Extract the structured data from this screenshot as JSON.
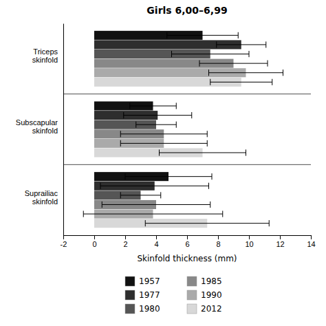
{
  "chart_data": {
    "type": "bar",
    "orientation": "horizontal",
    "title": "Girls 6,00–6,99",
    "xlabel": "Skinfold thickness (mm)",
    "categories": [
      "Triceps\nskinfold",
      "Subscapular\nskinfold",
      "Suprailiac\nskinfold"
    ],
    "series": [
      {
        "name": "1957",
        "color": "#111111",
        "values": [
          7.0,
          3.8,
          4.8
        ],
        "errors": [
          2.3,
          1.5,
          2.8
        ]
      },
      {
        "name": "1977",
        "color": "#2e2e2e",
        "values": [
          9.5,
          4.1,
          3.9
        ],
        "errors": [
          1.6,
          2.2,
          3.5
        ]
      },
      {
        "name": "1980",
        "color": "#555555",
        "values": [
          7.5,
          4.0,
          3.0
        ],
        "errors": [
          2.5,
          1.3,
          1.3
        ]
      },
      {
        "name": "1985",
        "color": "#888888",
        "values": [
          9.0,
          4.5,
          4.0
        ],
        "errors": [
          2.2,
          2.8,
          3.5
        ]
      },
      {
        "name": "1990",
        "color": "#aaaaaa",
        "values": [
          9.8,
          4.5,
          3.8
        ],
        "errors": [
          2.4,
          2.8,
          4.5
        ]
      },
      {
        "name": "2012",
        "color": "#d8d8d8",
        "values": [
          9.5,
          7.0,
          7.3
        ],
        "errors": [
          2.0,
          2.8,
          4.0
        ]
      }
    ],
    "xlim": [
      -2,
      14
    ],
    "xticks": [
      -2,
      0,
      2,
      4,
      6,
      8,
      10,
      12,
      14
    ],
    "grid": false,
    "legend": "bottom"
  }
}
